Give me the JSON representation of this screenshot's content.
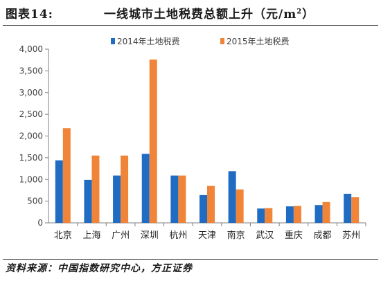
{
  "header": {
    "figure_label": "图表14:",
    "title_text": "一线城市土地税费总额上升（元/m",
    "title_sup": "2",
    "title_close": "）"
  },
  "footer": {
    "source": "资料来源：中国指数研究中心，方正证券"
  },
  "colors": {
    "series_2014": "#1f6cc2",
    "series_2015": "#f08539",
    "axis": "#7f7f7f",
    "text": "#404040"
  },
  "chart_data": {
    "type": "bar",
    "title": "",
    "xlabel": "",
    "ylabel": "",
    "ylim": [
      0,
      4000
    ],
    "yticks": [
      0,
      500,
      1000,
      1500,
      2000,
      2500,
      3000,
      3500,
      4000
    ],
    "ytick_labels": [
      "0",
      "500",
      "1,000",
      "1,500",
      "2,000",
      "2,500",
      "3,000",
      "3,500",
      "4,000"
    ],
    "grid": false,
    "legend_position": "top",
    "categories": [
      "北京",
      "上海",
      "广州",
      "深圳",
      "杭州",
      "天津",
      "南京",
      "武汉",
      "重庆",
      "成都",
      "苏州"
    ],
    "series": [
      {
        "name": "2014年土地税费",
        "values": [
          1440,
          990,
          1090,
          1590,
          1090,
          640,
          1190,
          330,
          380,
          410,
          670
        ]
      },
      {
        "name": "2015年土地税费",
        "values": [
          2180,
          1550,
          1550,
          3760,
          1090,
          850,
          770,
          340,
          390,
          480,
          590
        ]
      }
    ]
  }
}
